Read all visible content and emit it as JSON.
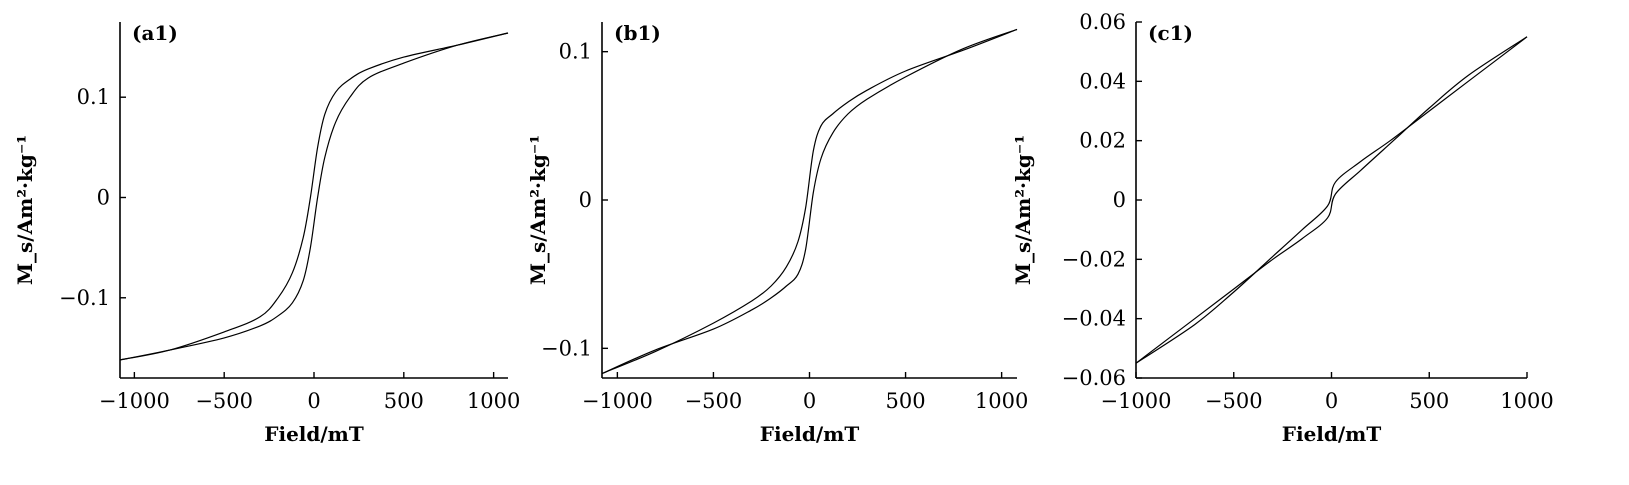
{
  "chart_data": [
    {
      "type": "line",
      "panel_label": "(a1)",
      "xlabel": "Field/mT",
      "ylabel": "M_s/Am²·kg⁻¹",
      "xlim": [
        -1080,
        1080
      ],
      "ylim": [
        -0.18,
        0.175
      ],
      "xticks": [
        -1000,
        -500,
        0,
        500,
        1000
      ],
      "xtick_labels": [
        "−1000",
        "−500",
        "0",
        "500",
        "1000"
      ],
      "yticks": [
        -0.1,
        0,
        0.1
      ],
      "ytick_labels": [
        "−0.1",
        "0",
        "0.1"
      ],
      "series": [
        {
          "x": [
            -1080,
            -800,
            -500,
            -300,
            -200,
            -120,
            -60,
            -20,
            20,
            60,
            120,
            200,
            300,
            500,
            800,
            1080
          ],
          "y": [
            -0.162,
            -0.152,
            -0.134,
            -0.119,
            -0.1,
            -0.075,
            -0.04,
            0.0,
            0.05,
            0.083,
            0.105,
            0.118,
            0.128,
            0.14,
            0.152,
            0.164
          ]
        },
        {
          "x": [
            -1080,
            -800,
            -500,
            -300,
            -200,
            -120,
            -60,
            -20,
            20,
            60,
            120,
            200,
            300,
            500,
            800,
            1080
          ],
          "y": [
            -0.162,
            -0.152,
            -0.14,
            -0.128,
            -0.118,
            -0.105,
            -0.083,
            -0.05,
            0.0,
            0.04,
            0.075,
            0.1,
            0.119,
            0.134,
            0.152,
            0.164
          ]
        }
      ]
    },
    {
      "type": "line",
      "panel_label": "(b1)",
      "xlabel": "Field/mT",
      "ylabel": "M_s/Am²·kg⁻¹",
      "xlim": [
        -1080,
        1080
      ],
      "ylim": [
        -0.12,
        0.12
      ],
      "xticks": [
        -1000,
        -500,
        0,
        500,
        1000
      ],
      "xtick_labels": [
        "−1000",
        "−500",
        "0",
        "500",
        "1000"
      ],
      "yticks": [
        -0.1,
        0,
        0.1
      ],
      "ytick_labels": [
        "−0.1",
        "0",
        "0.1"
      ],
      "series": [
        {
          "x": [
            -1080,
            -800,
            -500,
            -300,
            -200,
            -120,
            -60,
            -20,
            20,
            60,
            120,
            200,
            300,
            500,
            800,
            1080
          ],
          "y": [
            -0.117,
            -0.102,
            -0.083,
            -0.068,
            -0.058,
            -0.045,
            -0.028,
            -0.005,
            0.033,
            0.05,
            0.058,
            0.066,
            0.074,
            0.087,
            0.101,
            0.115
          ]
        },
        {
          "x": [
            -1080,
            -800,
            -500,
            -300,
            -200,
            -120,
            -60,
            -20,
            20,
            60,
            120,
            200,
            300,
            500,
            800,
            1080
          ],
          "y": [
            -0.117,
            -0.101,
            -0.087,
            -0.074,
            -0.066,
            -0.058,
            -0.05,
            -0.033,
            0.005,
            0.028,
            0.045,
            0.058,
            0.068,
            0.083,
            0.102,
            0.115
          ]
        }
      ]
    },
    {
      "type": "line",
      "panel_label": "(c1)",
      "xlabel": "Field/mT",
      "ylabel": "M_s/Am²·kg⁻¹",
      "xlim": [
        -1000,
        1000
      ],
      "ylim": [
        -0.06,
        0.06
      ],
      "xticks": [
        -1000,
        -500,
        0,
        500,
        1000
      ],
      "xtick_labels": [
        "−1000",
        "−500",
        "0",
        "500",
        "1000"
      ],
      "yticks": [
        -0.06,
        -0.04,
        -0.02,
        0,
        0.02,
        0.04,
        0.06
      ],
      "ytick_labels": [
        "−0.06",
        "−0.04",
        "−0.02",
        "0",
        "0.02",
        "0.04",
        "0.06"
      ],
      "series": [
        {
          "x": [
            -1000,
            -700,
            -500,
            -300,
            -150,
            -20,
            20,
            150,
            300,
            500,
            700,
            1000
          ],
          "y": [
            -0.055,
            -0.042,
            -0.031,
            -0.019,
            -0.01,
            -0.002,
            0.006,
            0.013,
            0.02,
            0.03,
            0.04,
            0.055
          ]
        },
        {
          "x": [
            -1000,
            -700,
            -500,
            -300,
            -150,
            -20,
            20,
            150,
            300,
            500,
            700,
            1000
          ],
          "y": [
            -0.055,
            -0.04,
            -0.03,
            -0.02,
            -0.013,
            -0.006,
            0.002,
            0.01,
            0.019,
            0.031,
            0.042,
            0.055
          ]
        }
      ]
    }
  ]
}
